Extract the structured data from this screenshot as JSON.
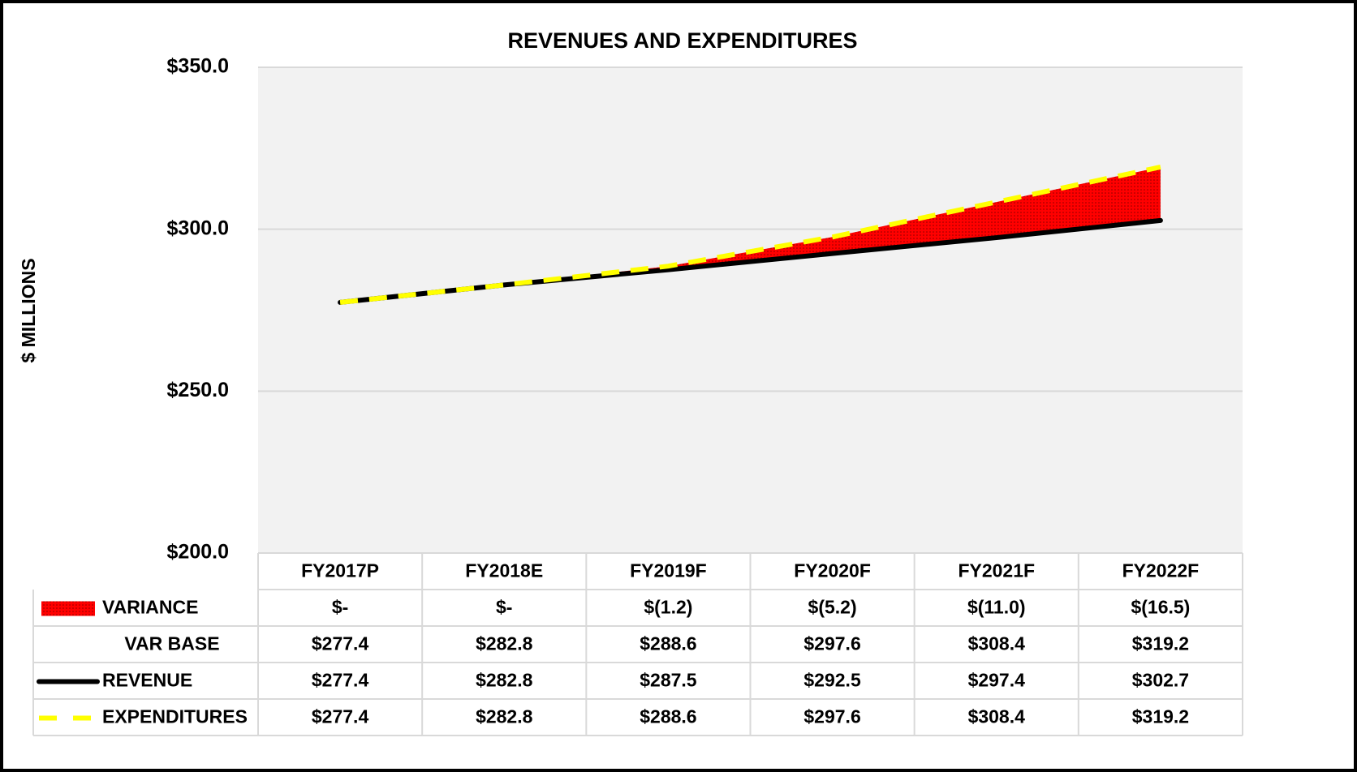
{
  "chart_data": {
    "type": "line",
    "title": "REVENUES AND EXPENDITURES",
    "y_label": "$ MILLIONS",
    "categories": [
      "FY2017P",
      "FY2018E",
      "FY2019F",
      "FY2020F",
      "FY2021F",
      "FY2022F"
    ],
    "ylim": [
      200,
      350
    ],
    "yticks": [
      {
        "value": 200,
        "label": "$200.0"
      },
      {
        "value": 250,
        "label": "$250.0"
      },
      {
        "value": 300,
        "label": "$300.0"
      },
      {
        "value": 350,
        "label": "$350.0"
      }
    ],
    "grid": true,
    "series": [
      {
        "name": "VARIANCE",
        "style": "area",
        "color": "#ff0000",
        "values": [
          0,
          0,
          -1.2,
          -5.2,
          -11.0,
          -16.5
        ],
        "value_labels": [
          "$-",
          "$-",
          "$(1.2)",
          "$(5.2)",
          "$(11.0)",
          "$(16.5)"
        ]
      },
      {
        "name": "VAR BASE",
        "style": "none",
        "values": [
          277.4,
          282.8,
          288.6,
          297.6,
          308.4,
          319.2
        ],
        "value_labels": [
          "$277.4",
          "$282.8",
          "$288.6",
          "$297.6",
          "$308.4",
          "$319.2"
        ]
      },
      {
        "name": "REVENUE",
        "style": "solid",
        "color": "#000000",
        "values": [
          277.4,
          282.8,
          287.5,
          292.5,
          297.4,
          302.7
        ],
        "value_labels": [
          "$277.4",
          "$282.8",
          "$287.5",
          "$292.5",
          "$297.4",
          "$302.7"
        ]
      },
      {
        "name": "EXPENDITURES",
        "style": "dashed",
        "color": "#ffff00",
        "values": [
          277.4,
          282.8,
          288.6,
          297.6,
          308.4,
          319.2
        ],
        "value_labels": [
          "$277.4",
          "$282.8",
          "$288.6",
          "$297.6",
          "$308.4",
          "$319.2"
        ]
      }
    ]
  }
}
